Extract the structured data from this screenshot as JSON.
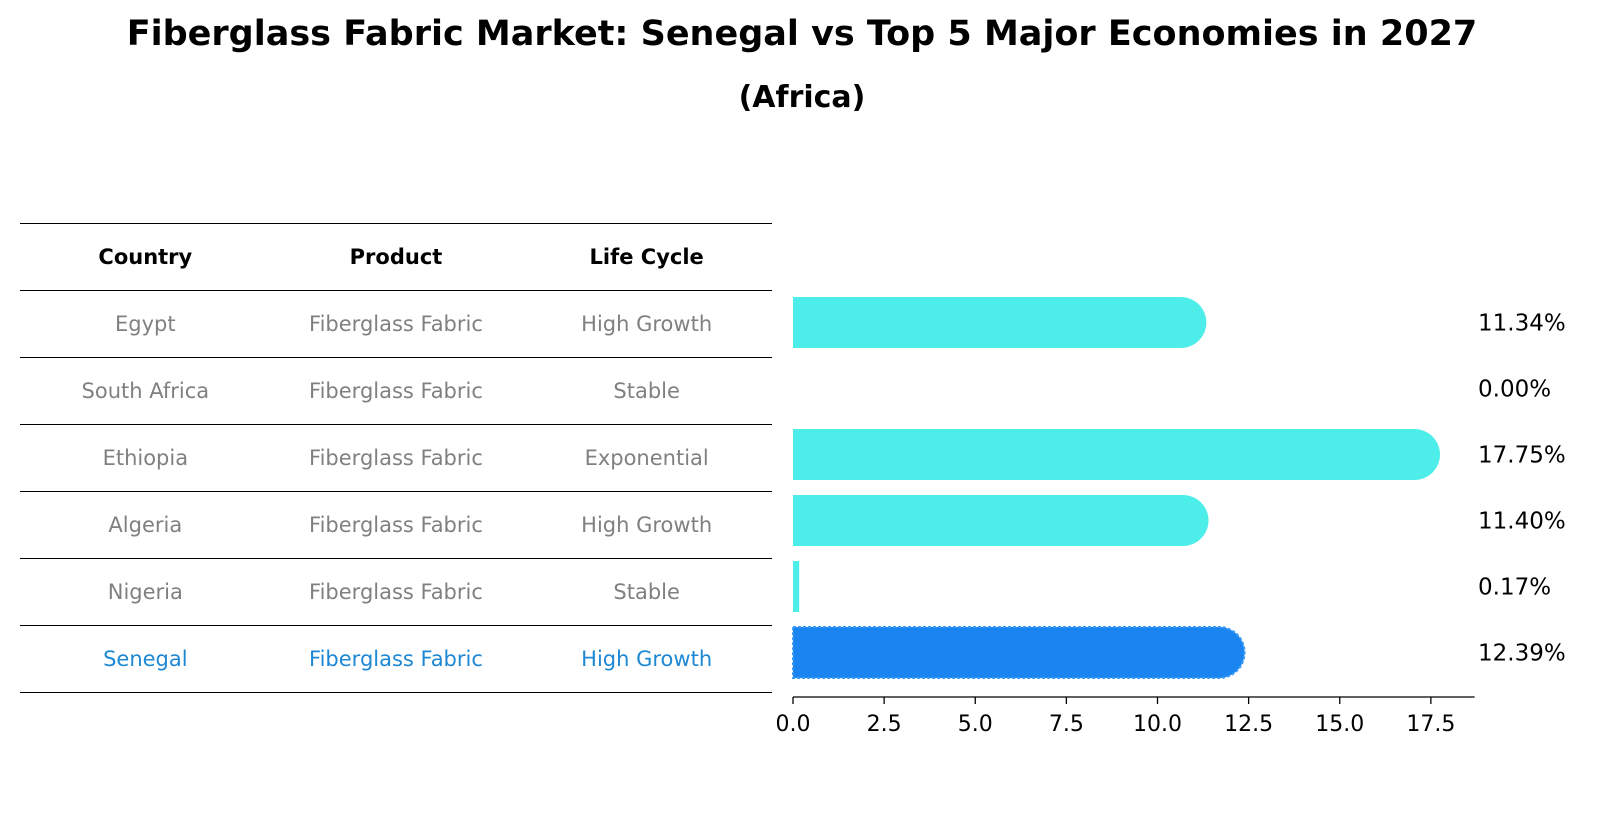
{
  "title": "Fiberglass Fabric Market: Senegal vs Top 5 Major Economies in 2027",
  "subtitle": "(Africa)",
  "table": {
    "headers": [
      "Country",
      "Product",
      "Life Cycle"
    ],
    "rows": [
      {
        "country": "Egypt",
        "product": "Fiberglass Fabric",
        "life_cycle": "High Growth"
      },
      {
        "country": "South Africa",
        "product": "Fiberglass Fabric",
        "life_cycle": "Stable"
      },
      {
        "country": "Ethiopia",
        "product": "Fiberglass Fabric",
        "life_cycle": "Exponential"
      },
      {
        "country": "Algeria",
        "product": "Fiberglass Fabric",
        "life_cycle": "High Growth"
      },
      {
        "country": "Nigeria",
        "product": "Fiberglass Fabric",
        "life_cycle": "Stable"
      },
      {
        "country": "Senegal",
        "product": "Fiberglass Fabric",
        "life_cycle": "High Growth"
      }
    ]
  },
  "chart_data": {
    "type": "bar",
    "orientation": "horizontal",
    "categories": [
      "Egypt",
      "South Africa",
      "Ethiopia",
      "Algeria",
      "Nigeria",
      "Senegal"
    ],
    "values": [
      11.34,
      0.0,
      17.75,
      11.4,
      0.17,
      12.39
    ],
    "value_labels": [
      "11.34%",
      "0.00%",
      "17.75%",
      "11.40%",
      "0.17%",
      "12.39%"
    ],
    "highlight": "Senegal",
    "xlim": [
      0,
      18.7
    ],
    "xticks": [
      0.0,
      2.5,
      5.0,
      7.5,
      10.0,
      12.5,
      15.0,
      17.5
    ],
    "xtick_labels": [
      "0.0",
      "2.5",
      "5.0",
      "7.5",
      "10.0",
      "12.5",
      "15.0",
      "17.5"
    ],
    "colors": {
      "default": "#4deeea",
      "highlight": "#1a85f0"
    },
    "grid": false
  }
}
